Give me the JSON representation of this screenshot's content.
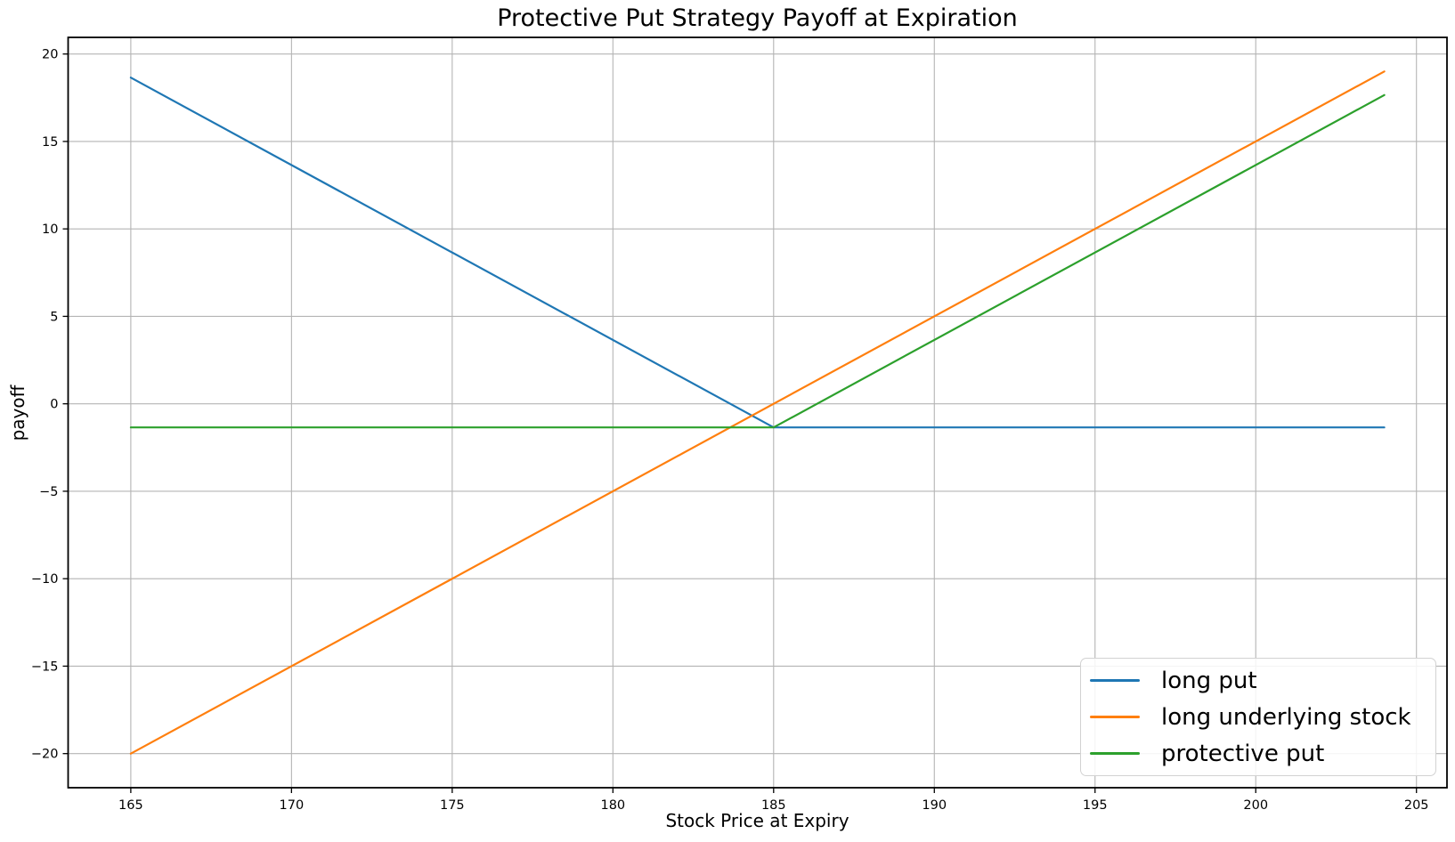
{
  "chart_data": {
    "type": "line",
    "title": "Protective Put Strategy Payoff at Expiration",
    "xlabel": "Stock Price at Expiry",
    "ylabel": "payoff",
    "xlim": [
      163.05,
      205.95
    ],
    "ylim": [
      -21.95,
      20.95
    ],
    "xticks": [
      165,
      170,
      175,
      180,
      185,
      190,
      195,
      200,
      205
    ],
    "yticks": [
      -20,
      -15,
      -10,
      -5,
      0,
      5,
      10,
      15,
      20
    ],
    "grid": true,
    "grid_color": "#b4b4b4",
    "legend_position": "lower right",
    "x_range": [
      165,
      204
    ],
    "series": [
      {
        "name": "long put",
        "color": "#1f77b4",
        "points": [
          [
            165,
            18.65
          ],
          [
            185,
            -1.35
          ],
          [
            204,
            -1.35
          ]
        ]
      },
      {
        "name": "long underlying stock",
        "color": "#ff7f0e",
        "points": [
          [
            165,
            -20
          ],
          [
            204,
            19
          ]
        ]
      },
      {
        "name": "protective put",
        "color": "#2ca02c",
        "points": [
          [
            165,
            -1.35
          ],
          [
            185,
            -1.35
          ],
          [
            204,
            17.65
          ]
        ]
      }
    ]
  }
}
